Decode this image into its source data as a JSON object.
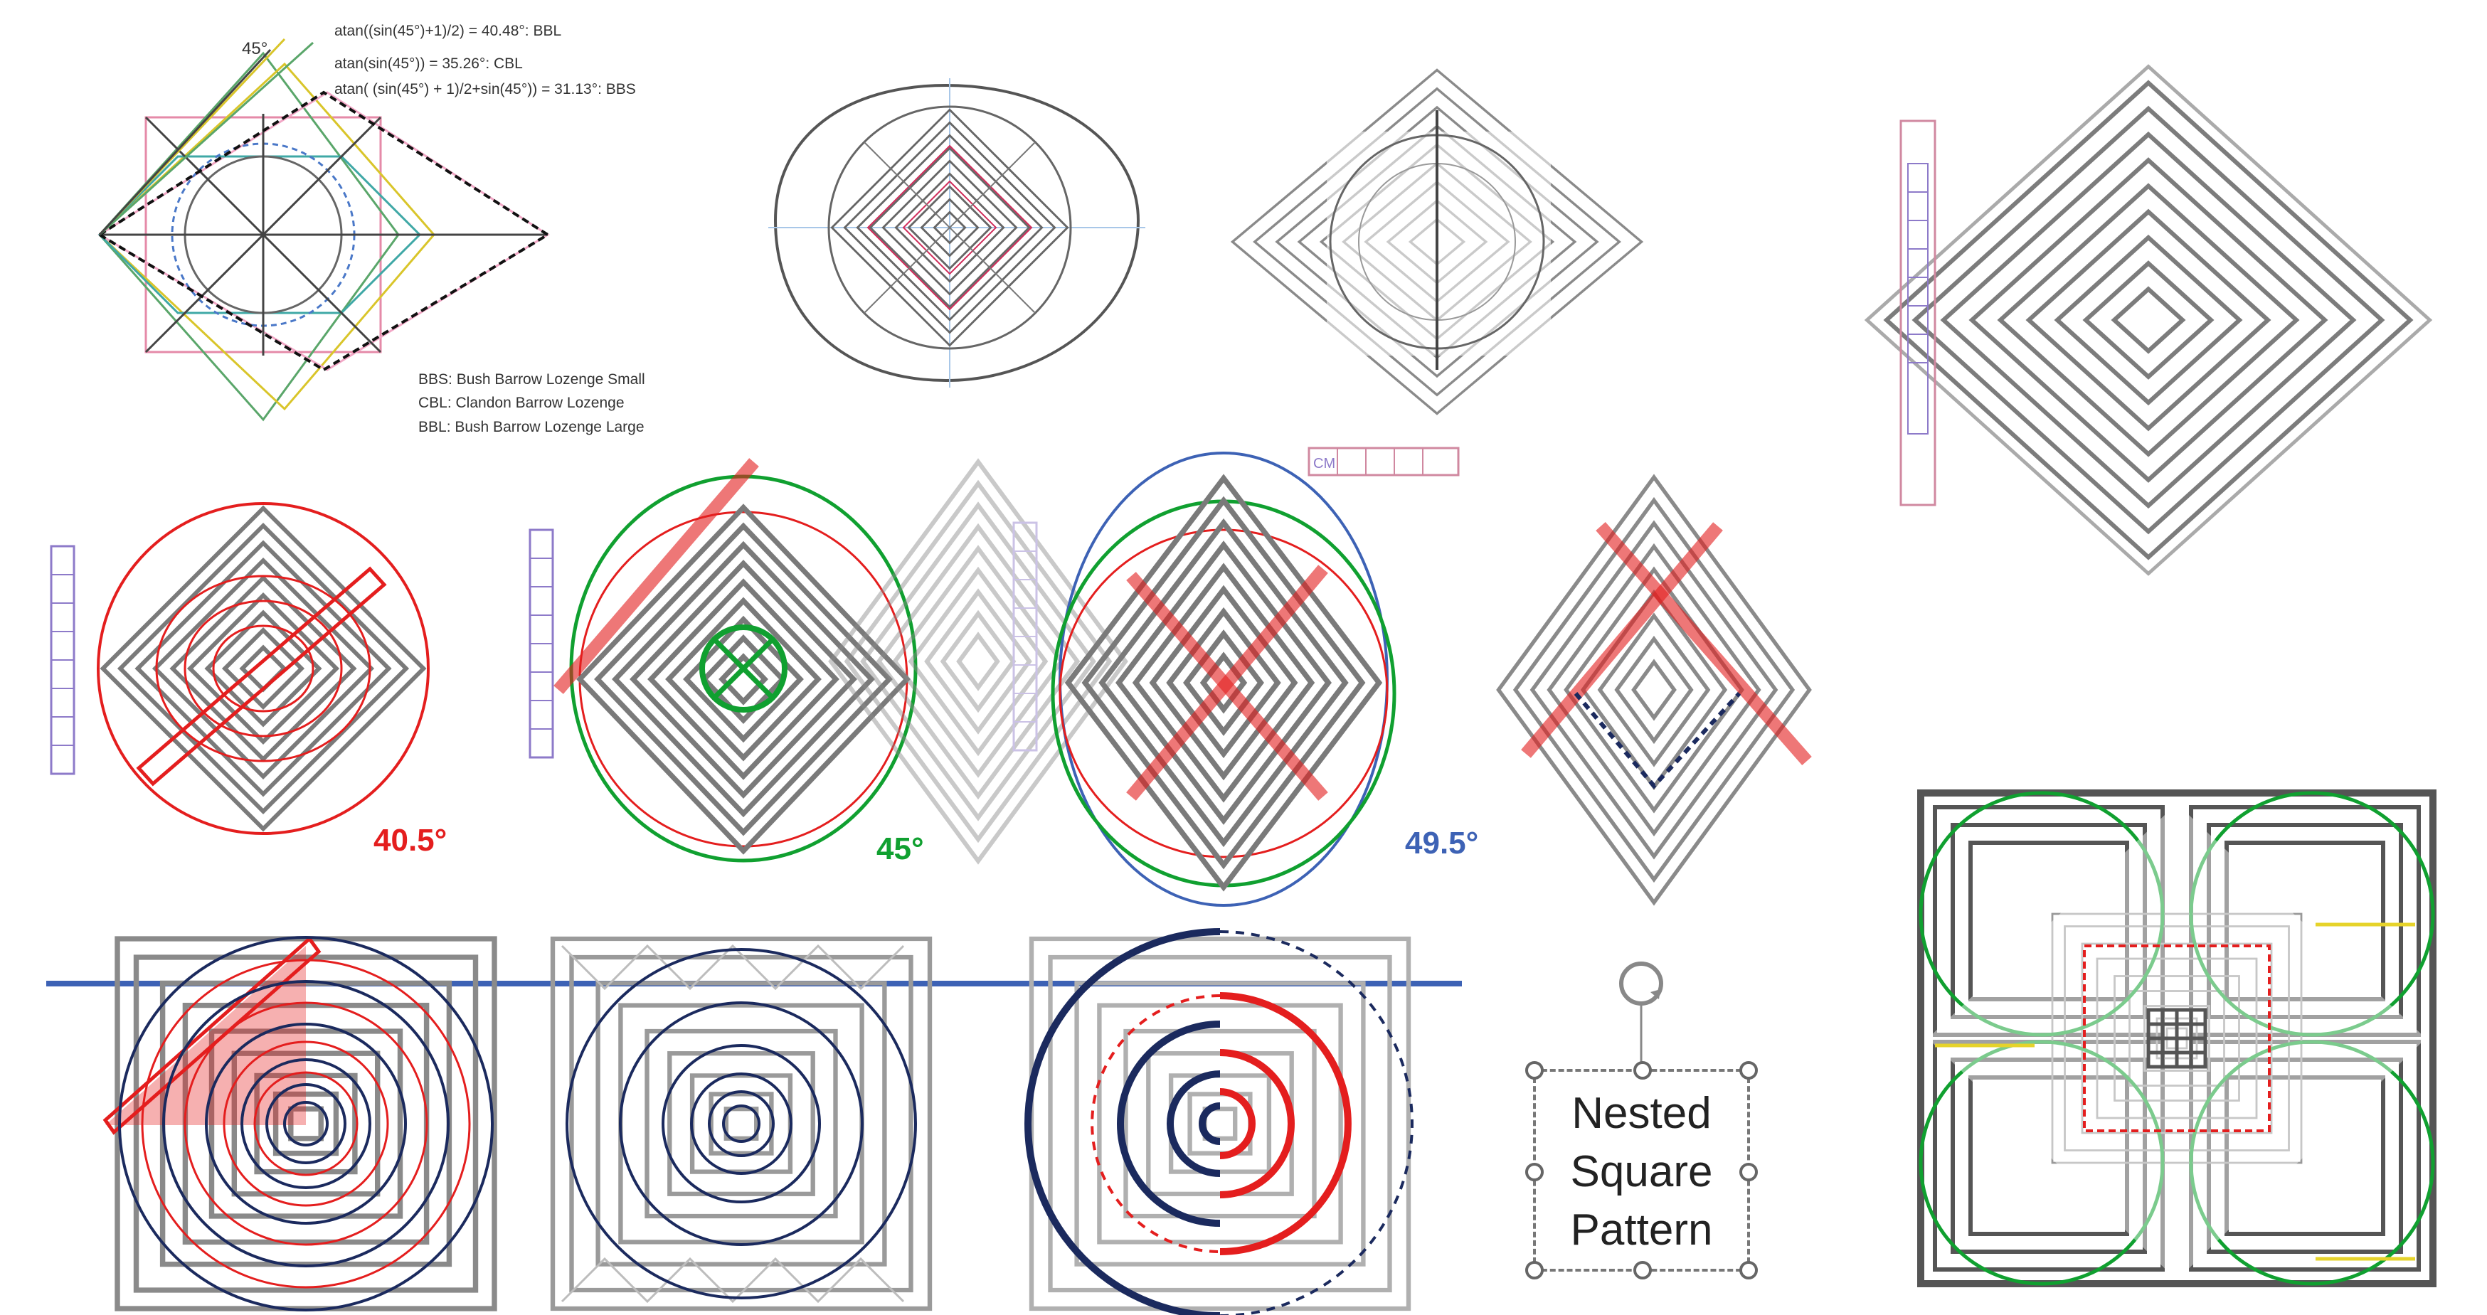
{
  "top_left_diagram": {
    "angle_label": "45°",
    "formulas": [
      "atan((sin(45°)+1)/2) = 40.48°: BBL",
      "atan(sin(45°)) = 35.26°: CBL",
      "atan( (sin(45°) + 1)/2+sin(45°)) = 31.13°: BBS"
    ],
    "legend": [
      "BBS: Bush Barrow Lozenge Small",
      "CBL:   Clandon Barrow Lozenge",
      "BBL: Bush Barrow Lozenge Large"
    ]
  },
  "ruler_label": "CM",
  "angle_labels": {
    "red": "40.5°",
    "green": "45°",
    "blue": "49.5°"
  },
  "colors": {
    "red": "#e41e1e",
    "green": "#10a030",
    "blue": "#3d62b5",
    "navy": "#1b2a5e",
    "gray": "#7a7a7a"
  },
  "text_box": {
    "lines": [
      "Nested",
      "Square",
      "Pattern"
    ],
    "rotate_icon": "rotate-handle-icon"
  }
}
